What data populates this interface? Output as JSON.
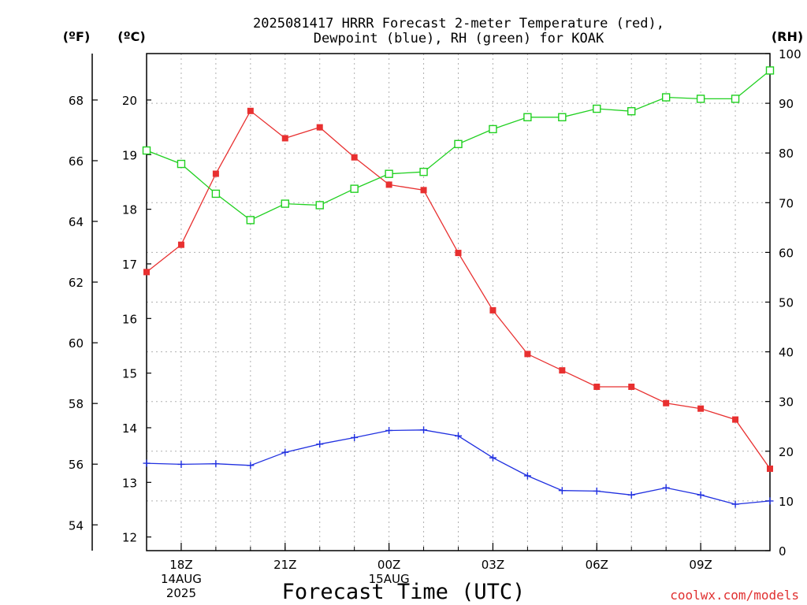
{
  "chart_data": {
    "type": "line",
    "title_line1": "2025081417 HRRR Forecast 2-meter Temperature (red),",
    "title_line2": "Dewpoint (blue), RH (green) for KOAK",
    "xlabel": "Forecast Time (UTC)",
    "credit": "coolwx.com/models",
    "units": {
      "fahrenheit": "(ºF)",
      "celsius": "(ºC)",
      "rh": "(RH)"
    },
    "hours": [
      17,
      18,
      19,
      20,
      21,
      22,
      23,
      24,
      25,
      26,
      27,
      28,
      29,
      30,
      31,
      32,
      33,
      34,
      35
    ],
    "xlim": [
      17,
      35
    ],
    "x_ticks": [
      {
        "hour": 18,
        "lines": [
          "18Z",
          "14AUG",
          "2025"
        ]
      },
      {
        "hour": 21,
        "lines": [
          "21Z"
        ]
      },
      {
        "hour": 24,
        "lines": [
          "00Z",
          "15AUG"
        ]
      },
      {
        "hour": 27,
        "lines": [
          "03Z"
        ]
      },
      {
        "hour": 30,
        "lines": [
          "06Z"
        ]
      },
      {
        "hour": 33,
        "lines": [
          "09Z"
        ]
      }
    ],
    "celsius_axis": {
      "ylim": [
        11.75,
        20.85
      ],
      "ticks": [
        12,
        13,
        14,
        15,
        16,
        17,
        18,
        19,
        20
      ]
    },
    "fahrenheit_axis": {
      "ticks": [
        54,
        56,
        58,
        60,
        62,
        64,
        66,
        68
      ]
    },
    "rh_axis": {
      "ylim": [
        0,
        100
      ],
      "ticks": [
        0,
        10,
        20,
        30,
        40,
        50,
        60,
        70,
        80,
        90,
        100
      ]
    },
    "series": [
      {
        "key": "temperature",
        "axis": "celsius",
        "color": "#e83030",
        "marker": "filled-square",
        "values": [
          16.85,
          17.35,
          18.65,
          19.8,
          19.3,
          19.5,
          18.95,
          18.45,
          18.35,
          17.2,
          16.15,
          15.35,
          15.05,
          14.75,
          14.75,
          14.45,
          14.35,
          14.15,
          13.25
        ]
      },
      {
        "key": "dewpoint",
        "axis": "celsius",
        "color": "#2030e0",
        "marker": "plus",
        "values": [
          13.35,
          13.33,
          13.34,
          13.31,
          13.55,
          13.7,
          13.82,
          13.95,
          13.96,
          13.85,
          13.45,
          13.12,
          12.85,
          12.84,
          12.77,
          12.9,
          12.77,
          12.6,
          12.66
        ]
      },
      {
        "key": "rh",
        "axis": "rh",
        "color": "#20d020",
        "marker": "open-square",
        "values": [
          80.5,
          77.8,
          71.8,
          66.5,
          69.8,
          69.5,
          72.8,
          75.8,
          76.2,
          81.8,
          84.8,
          87.2,
          87.2,
          88.9,
          88.4,
          91.2,
          90.9,
          90.9,
          96.6
        ]
      }
    ]
  }
}
